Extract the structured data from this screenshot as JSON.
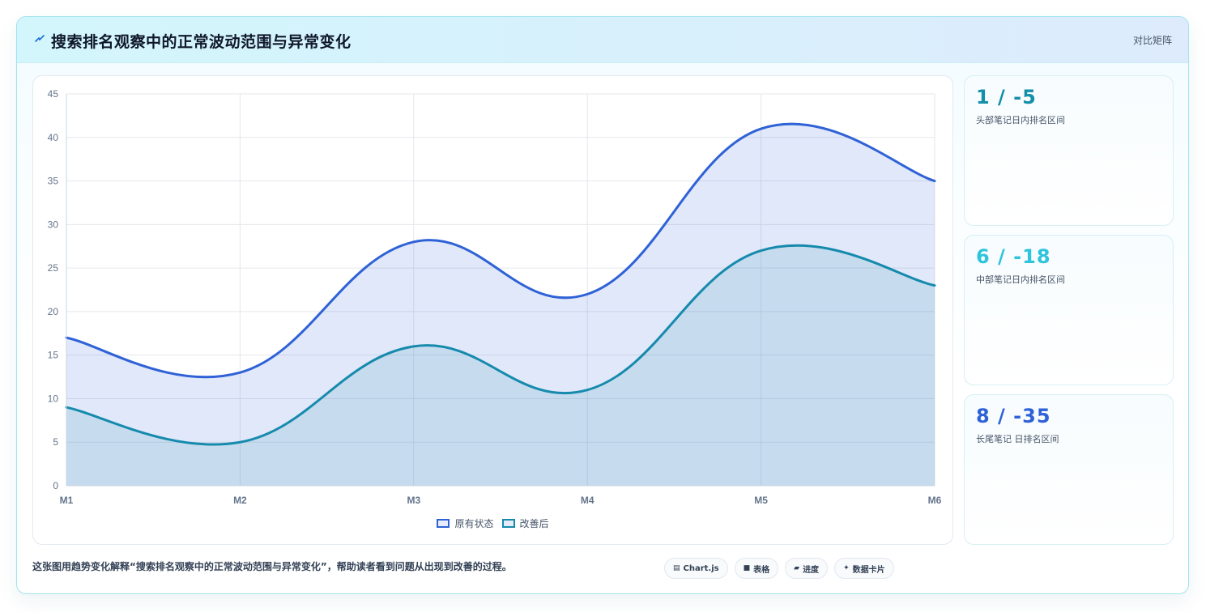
{
  "header": {
    "title": "搜索排名观察中的正常波动范围与异常变化",
    "action_label": "对比矩阵",
    "icon": "lightning-icon"
  },
  "chart_data": {
    "type": "area",
    "title": "",
    "xlabel": "",
    "ylabel": "",
    "categories": [
      "M1",
      "M2",
      "M3",
      "M4",
      "M5",
      "M6"
    ],
    "ylim": [
      0,
      45
    ],
    "yticks": [
      0,
      5,
      10,
      15,
      20,
      25,
      30,
      35,
      40,
      45
    ],
    "grid": true,
    "legend_position": "bottom",
    "series": [
      {
        "name": "原有状态",
        "values": [
          17,
          13,
          28,
          22,
          41,
          35
        ],
        "color": "#2f62d6"
      },
      {
        "name": "改善后",
        "values": [
          9,
          5,
          16,
          11,
          27,
          23
        ],
        "color": "#168aad"
      }
    ]
  },
  "stats": [
    {
      "value": "1 / -5",
      "label": "头部笔记日内排名区间",
      "color": "#1390a8"
    },
    {
      "value": "6 / -18",
      "label": "中部笔记日内排名区间",
      "color": "#2dc4dc"
    },
    {
      "value": "8 / -35",
      "label": "长尾笔记 日排名区间",
      "color": "#2f62d6"
    }
  ],
  "caption": "这张图用趋势变化解释“搜索排名观察中的正常波动范围与异常变化”，帮助读者看到问题从出现到改善的过程。",
  "chips": [
    {
      "icon": "▤",
      "label": "Chart.js"
    },
    {
      "icon": "■",
      "label": "表格"
    },
    {
      "icon": "▰",
      "label": "进度"
    },
    {
      "icon": "✦",
      "label": "数据卡片"
    }
  ]
}
